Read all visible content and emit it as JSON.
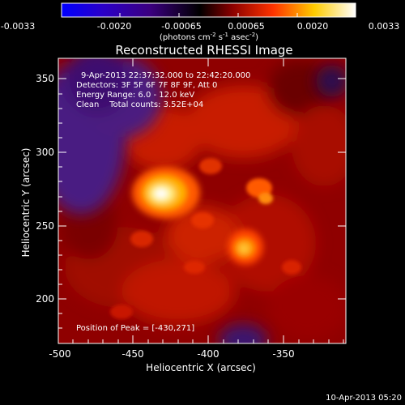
{
  "colorbar": {
    "ticks": [
      "-0.0033",
      "-0.0020",
      "-0.00065",
      "0.00065",
      "0.0020",
      "0.0033"
    ],
    "unit_main": "(photons cm",
    "unit_exp1": "-2",
    "unit_s": " s",
    "unit_exp2": "-1",
    "unit_asec": " asec",
    "unit_exp3": "-2",
    "unit_close": ")",
    "colors": [
      "#0000ff",
      "#2a00c8",
      "#3b0080",
      "#000000",
      "#8a0000",
      "#ff3300",
      "#ffcc00",
      "#ffffff"
    ]
  },
  "image": {
    "title": "Reconstructed RHESSI Image",
    "info": [
      "9-Apr-2013 22:37:32.000 to 22:42:20.000",
      "Detectors: 3F 5F 6F 7F 8F 9F, Att 0",
      "Energy Range: 6.0 - 12.0 keV",
      "Clean    Total counts: 3.52E+04"
    ],
    "peak_label": "Position of Peak = [-430,271]",
    "peak_position": [
      -430,
      271
    ],
    "secondary_source": [
      -377,
      232
    ],
    "x_axis": {
      "label": "Heliocentric X (arcsec)",
      "ticks": [
        "-500",
        "-450",
        "-400",
        "-350"
      ],
      "range": [
        -500,
        -310
      ]
    },
    "y_axis": {
      "label": "Heliocentric Y (arcsec)",
      "ticks": [
        "200",
        "250",
        "300",
        "350"
      ],
      "range": [
        170,
        365
      ]
    }
  },
  "timestamp": "10-Apr-2013 05:20"
}
